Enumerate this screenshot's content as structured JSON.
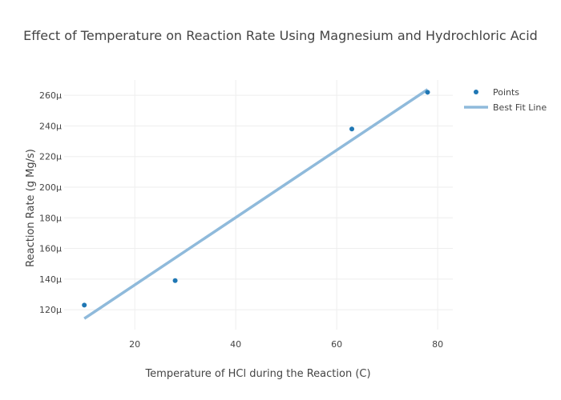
{
  "chart_data": {
    "type": "scatter",
    "title": "Effect of Temperature on Reaction Rate Using Magnesium and Hydrochloric Acid",
    "xlabel": "Temperature of HCl during the Reaction (C)",
    "ylabel": "Reaction Rate (g Mg/s)",
    "xlim": [
      6,
      83
    ],
    "ylim": [
      0.000107,
      0.00027
    ],
    "x_ticks": [
      20,
      40,
      60,
      80
    ],
    "y_ticks": [
      0.00012,
      0.00014,
      0.00016,
      0.00018,
      0.0002,
      0.00022,
      0.00024,
      0.00026
    ],
    "x_tick_labels": [
      "20",
      "40",
      "60",
      "80"
    ],
    "y_tick_labels": [
      "120µ",
      "140µ",
      "160µ",
      "180µ",
      "200µ",
      "220µ",
      "240µ",
      "260µ"
    ],
    "grid": true,
    "legend_position": "top-right",
    "series": [
      {
        "name": "Points",
        "kind": "markers",
        "color": "#1f77b4",
        "x": [
          10,
          28,
          63,
          78
        ],
        "y": [
          0.000123,
          0.000139,
          0.000238,
          0.000262
        ]
      },
      {
        "name": "Best Fit Line",
        "kind": "line",
        "color": "#8fbadb",
        "x": [
          10,
          78
        ],
        "y": [
          0.0001142,
          0.0002638
        ]
      }
    ]
  }
}
